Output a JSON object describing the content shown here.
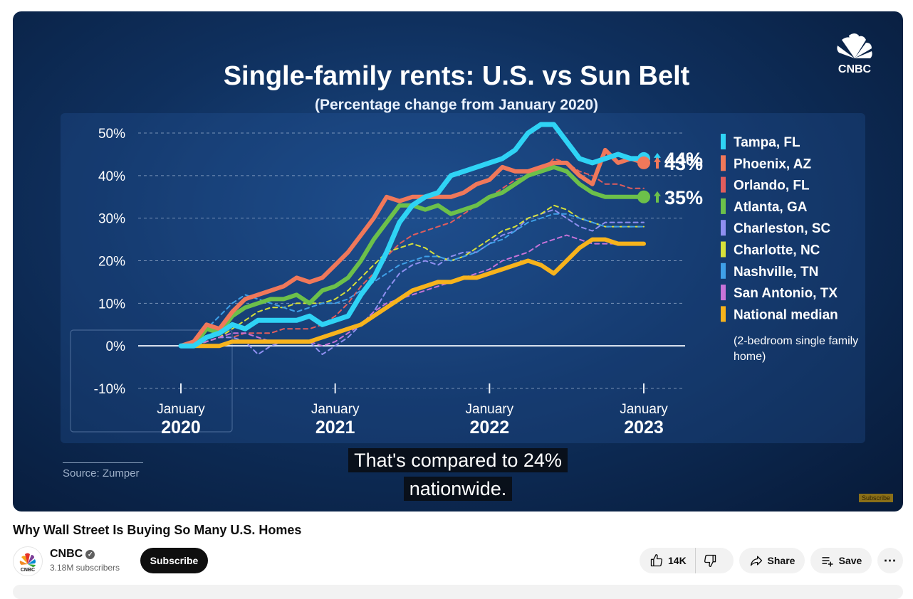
{
  "video": {
    "title": "Single-family rents: U.S. vs Sun Belt",
    "subtitle": "(Percentage change from January 2020)",
    "logo_text": "CNBC",
    "source": "Source: Zumper",
    "caption_line1": "That's compared to 24%",
    "caption_line2": "nationwide.",
    "badge": "Subscribe"
  },
  "chart_data": {
    "type": "line",
    "title": "Single-family rents: U.S. vs Sun Belt",
    "subtitle": "(Percentage change from January 2020)",
    "ylim": [
      -10,
      50
    ],
    "yticks": [
      "50%",
      "40%",
      "30%",
      "20%",
      "10%",
      "0%",
      "-10%"
    ],
    "ytick_values": [
      50,
      40,
      30,
      20,
      10,
      0,
      -10
    ],
    "xticks": [
      {
        "month": "January",
        "year": "2020",
        "t": 0
      },
      {
        "month": "January",
        "year": "2021",
        "t": 12
      },
      {
        "month": "January",
        "year": "2022",
        "t": 24
      },
      {
        "month": "January",
        "year": "2023",
        "t": 36
      }
    ],
    "note": "(2-bedroom single family home)",
    "end_labels": [
      {
        "text": "44%",
        "color": "#2fd3f5",
        "value": 44
      },
      {
        "text": "43%",
        "color": "#f0785a",
        "value": 43
      },
      {
        "text": "35%",
        "color": "#6cc04a",
        "value": 35
      }
    ],
    "series": [
      {
        "name": "Tampa, FL",
        "color": "#2fd3f5",
        "style": "solid",
        "width": 7,
        "values": [
          0,
          0,
          2,
          3,
          5,
          4,
          6,
          6,
          6,
          6,
          7,
          5,
          6,
          7,
          12,
          16,
          22,
          29,
          33,
          35,
          36,
          40,
          41,
          42,
          43,
          44,
          46,
          50,
          52,
          52,
          48,
          44,
          43,
          44,
          45,
          44,
          44
        ]
      },
      {
        "name": "Phoenix, AZ",
        "color": "#f0785a",
        "style": "solid",
        "width": 6,
        "values": [
          0,
          1,
          5,
          4,
          8,
          11,
          12,
          13,
          14,
          16,
          15,
          16,
          19,
          22,
          26,
          30,
          35,
          34,
          35,
          35,
          35,
          35,
          36,
          38,
          39,
          42,
          41,
          41,
          42,
          43,
          43,
          40,
          38,
          46,
          43,
          44,
          43
        ]
      },
      {
        "name": "Orlando, FL",
        "color": "#e05d5d",
        "style": "dashed",
        "width": 2,
        "values": [
          0,
          0,
          1,
          2,
          2,
          3,
          3,
          3,
          4,
          4,
          4,
          5,
          7,
          10,
          14,
          17,
          21,
          24,
          26,
          27,
          28,
          29,
          31,
          33,
          35,
          37,
          39,
          40,
          41,
          44,
          43,
          41,
          40,
          38,
          38,
          37,
          37
        ]
      },
      {
        "name": "Atlanta, GA",
        "color": "#6cc04a",
        "style": "solid",
        "width": 6,
        "values": [
          0,
          0,
          4,
          3,
          7,
          9,
          10,
          11,
          11,
          12,
          10,
          13,
          14,
          16,
          20,
          25,
          29,
          33,
          33,
          32,
          33,
          31,
          32,
          33,
          35,
          36,
          38,
          40,
          41,
          42,
          41,
          38,
          36,
          35,
          35,
          35,
          35
        ]
      },
      {
        "name": "Charleston, SC",
        "color": "#8f8ff0",
        "style": "dashed",
        "width": 2,
        "values": [
          0,
          0,
          1,
          2,
          2,
          1,
          -2,
          0,
          1,
          1,
          1,
          -2,
          0,
          2,
          5,
          8,
          13,
          17,
          19,
          20,
          19,
          21,
          22,
          22,
          24,
          26,
          27,
          30,
          31,
          32,
          30,
          28,
          27,
          29,
          29,
          29,
          29
        ]
      },
      {
        "name": "Charlotte, NC",
        "color": "#d7e03a",
        "style": "dashed",
        "width": 2,
        "values": [
          0,
          0,
          1,
          2,
          4,
          6,
          8,
          9,
          9,
          10,
          10,
          10,
          11,
          13,
          16,
          19,
          22,
          23,
          24,
          23,
          21,
          20,
          21,
          23,
          25,
          27,
          28,
          30,
          31,
          33,
          32,
          30,
          29,
          28,
          28,
          28,
          28
        ]
      },
      {
        "name": "Nashville, TN",
        "color": "#3fa0e8",
        "style": "dashed",
        "width": 2,
        "values": [
          0,
          0,
          4,
          7,
          10,
          12,
          11,
          10,
          9,
          8,
          9,
          10,
          10,
          11,
          13,
          15,
          17,
          19,
          20,
          21,
          21,
          20,
          21,
          22,
          24,
          25,
          27,
          29,
          30,
          31,
          31,
          30,
          29,
          28,
          28,
          28,
          28
        ]
      },
      {
        "name": "San Antonio, TX",
        "color": "#c773d8",
        "style": "dashed",
        "width": 2,
        "values": [
          0,
          0,
          1,
          2,
          3,
          3,
          2,
          1,
          1,
          1,
          1,
          0,
          1,
          3,
          5,
          8,
          10,
          11,
          12,
          13,
          14,
          15,
          16,
          17,
          18,
          20,
          21,
          22,
          24,
          25,
          26,
          25,
          24,
          24,
          24,
          24,
          24
        ]
      },
      {
        "name": "National median",
        "color": "#f7b31c",
        "style": "solid",
        "width": 6,
        "values": [
          0,
          0,
          0,
          0,
          1,
          1,
          1,
          1,
          1,
          1,
          1,
          2,
          3,
          4,
          5,
          7,
          9,
          11,
          13,
          14,
          15,
          15,
          16,
          16,
          17,
          18,
          19,
          20,
          19,
          17,
          20,
          23,
          25,
          25,
          24,
          24,
          24
        ]
      }
    ]
  },
  "meta": {
    "video_title": "Why Wall Street Is Buying So Many U.S. Homes",
    "channel_name": "CNBC",
    "subscribers": "3.18M subscribers",
    "subscribe_label": "Subscribe",
    "like_count": "14K",
    "share_label": "Share",
    "save_label": "Save",
    "more_label": "⋯"
  }
}
